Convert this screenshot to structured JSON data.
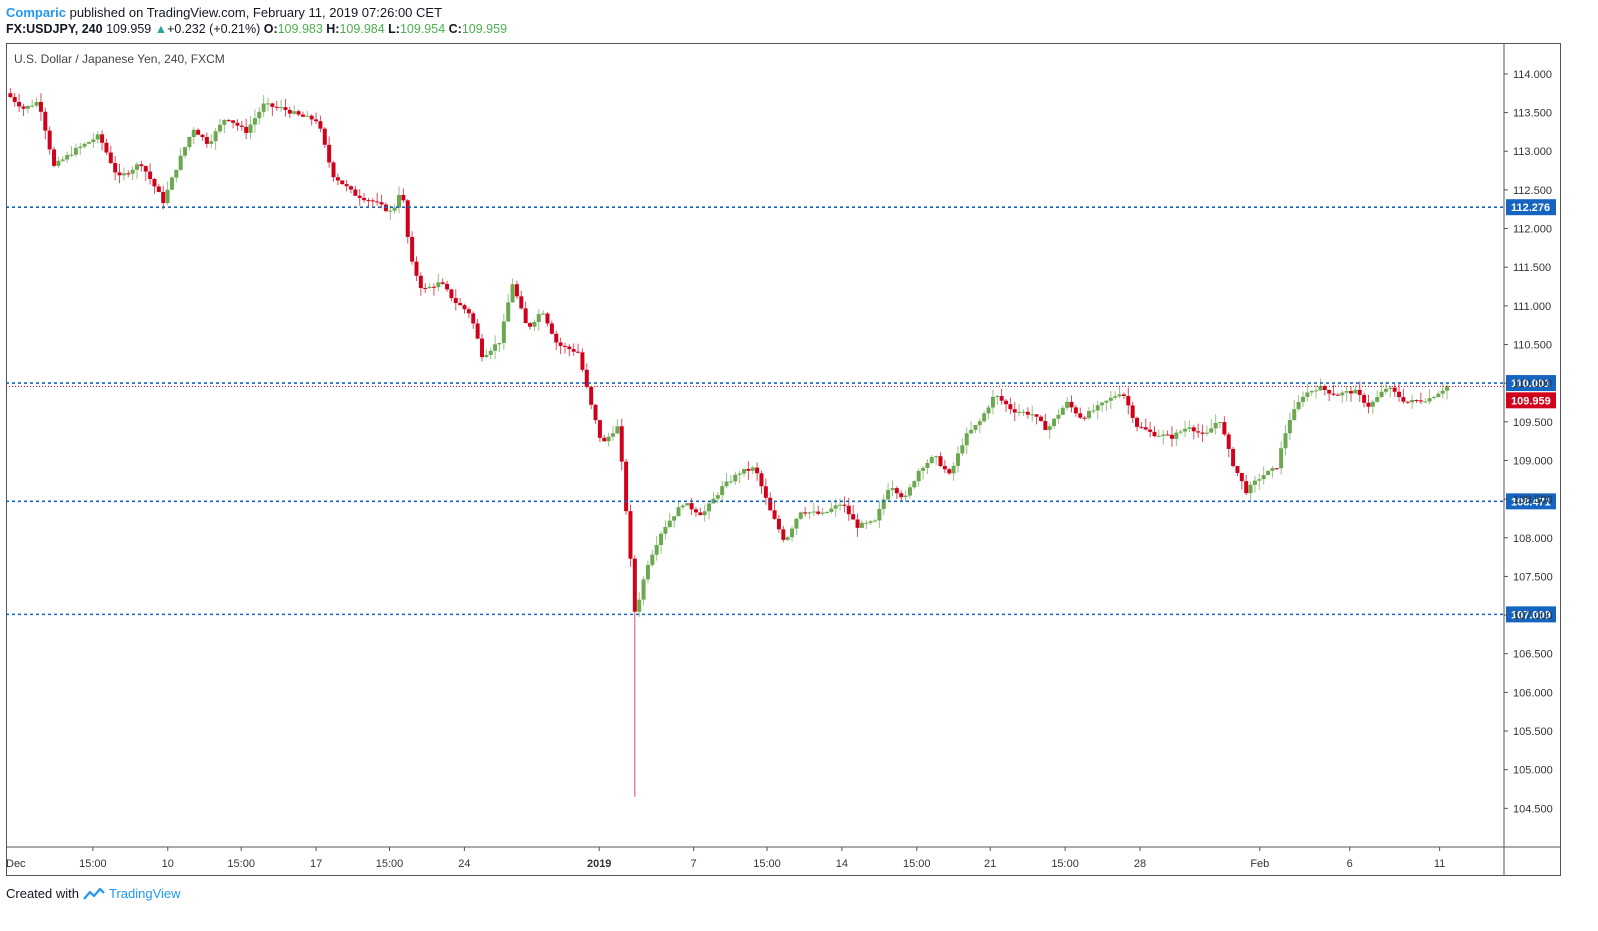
{
  "header": {
    "author": "Comparic",
    "published_text": "published on TradingView.com, February 11, 2019 07:26:00 CET",
    "symbol": "FX:USDJPY, 240",
    "last": "109.959",
    "change_arrow": "▲",
    "change": "+0.232 (+0.21%)",
    "o_label": "O:",
    "o_value": "109.983",
    "h_label": "H:",
    "h_value": "109.984",
    "l_label": "L:",
    "l_value": "109.954",
    "c_label": "C:",
    "c_value": "109.959"
  },
  "chart_title": "U.S. Dollar / Japanese Yen, 240, FXCM",
  "footer": {
    "created_with": "Created with",
    "brand": "TradingView"
  },
  "colors": {
    "up": "#6ba84f",
    "down": "#d0021b",
    "hline": "#1565c0",
    "price_label": "#d0021b",
    "level_label": "#1565c0"
  },
  "chart_data": {
    "type": "candlestick",
    "title": "U.S. Dollar / Japanese Yen, 240, FXCM",
    "ylim": [
      104.0,
      114.4
    ],
    "y_ticks": [
      "114.000",
      "113.500",
      "113.000",
      "112.500",
      "112.000",
      "111.500",
      "111.000",
      "110.500",
      "110.000",
      "109.500",
      "109.000",
      "108.500",
      "108.000",
      "107.500",
      "107.000",
      "106.500",
      "106.000",
      "105.500",
      "105.000",
      "104.500"
    ],
    "x_ticks": [
      {
        "label": "Dec",
        "t": 0.0
      },
      {
        "label": "15:00",
        "t": 0.058
      },
      {
        "label": "10",
        "t": 0.108
      },
      {
        "label": "15:00",
        "t": 0.157
      },
      {
        "label": "17",
        "t": 0.207
      },
      {
        "label": "15:00",
        "t": 0.256
      },
      {
        "label": "24",
        "t": 0.306
      },
      {
        "label": "2019",
        "t": 0.396
      },
      {
        "label": "7",
        "t": 0.459
      },
      {
        "label": "15:00",
        "t": 0.508
      },
      {
        "label": "14",
        "t": 0.558
      },
      {
        "label": "15:00",
        "t": 0.608
      },
      {
        "label": "21",
        "t": 0.657
      },
      {
        "label": "15:00",
        "t": 0.707
      },
      {
        "label": "28",
        "t": 0.757
      },
      {
        "label": "Feb",
        "t": 0.837
      },
      {
        "label": "6",
        "t": 0.897
      },
      {
        "label": "11",
        "t": 0.957
      }
    ],
    "horizontal_levels": [
      {
        "label": "112.276",
        "value": 112.276,
        "color": "#1565c0"
      },
      {
        "label": "110.001",
        "value": 110.001,
        "color": "#1565c0"
      },
      {
        "label": "108.471",
        "value": 108.471,
        "color": "#1565c0"
      },
      {
        "label": "107.009",
        "value": 107.009,
        "color": "#1565c0"
      }
    ],
    "last_price": {
      "label": "109.959",
      "value": 109.959,
      "color": "#d0021b"
    },
    "path": [
      {
        "t": 0.0,
        "p": 113.75
      },
      {
        "t": 0.012,
        "p": 113.55
      },
      {
        "t": 0.022,
        "p": 113.65
      },
      {
        "t": 0.032,
        "p": 112.8
      },
      {
        "t": 0.045,
        "p": 113.0
      },
      {
        "t": 0.062,
        "p": 113.2
      },
      {
        "t": 0.075,
        "p": 112.65
      },
      {
        "t": 0.09,
        "p": 112.85
      },
      {
        "t": 0.105,
        "p": 112.35
      },
      {
        "t": 0.115,
        "p": 112.85
      },
      {
        "t": 0.125,
        "p": 113.3
      },
      {
        "t": 0.135,
        "p": 113.1
      },
      {
        "t": 0.147,
        "p": 113.45
      },
      {
        "t": 0.16,
        "p": 113.25
      },
      {
        "t": 0.172,
        "p": 113.6
      },
      {
        "t": 0.185,
        "p": 113.55
      },
      {
        "t": 0.197,
        "p": 113.45
      },
      {
        "t": 0.208,
        "p": 113.4
      },
      {
        "t": 0.218,
        "p": 112.7
      },
      {
        "t": 0.232,
        "p": 112.45
      },
      {
        "t": 0.245,
        "p": 112.35
      },
      {
        "t": 0.258,
        "p": 112.2
      },
      {
        "t": 0.264,
        "p": 112.55
      },
      {
        "t": 0.27,
        "p": 111.6
      },
      {
        "t": 0.278,
        "p": 111.2
      },
      {
        "t": 0.29,
        "p": 111.3
      },
      {
        "t": 0.3,
        "p": 111.05
      },
      {
        "t": 0.31,
        "p": 110.9
      },
      {
        "t": 0.318,
        "p": 110.35
      },
      {
        "t": 0.33,
        "p": 110.55
      },
      {
        "t": 0.338,
        "p": 111.3
      },
      {
        "t": 0.348,
        "p": 110.7
      },
      {
        "t": 0.358,
        "p": 110.95
      },
      {
        "t": 0.368,
        "p": 110.5
      },
      {
        "t": 0.382,
        "p": 110.4
      },
      {
        "t": 0.39,
        "p": 109.75
      },
      {
        "t": 0.398,
        "p": 109.2
      },
      {
        "t": 0.408,
        "p": 109.45
      },
      {
        "t": 0.412,
        "p": 108.8
      },
      {
        "t": 0.42,
        "p": 107.0
      },
      {
        "t": 0.428,
        "p": 107.65
      },
      {
        "t": 0.438,
        "p": 108.1
      },
      {
        "t": 0.452,
        "p": 108.45
      },
      {
        "t": 0.465,
        "p": 108.3
      },
      {
        "t": 0.478,
        "p": 108.65
      },
      {
        "t": 0.49,
        "p": 108.85
      },
      {
        "t": 0.5,
        "p": 108.9
      },
      {
        "t": 0.51,
        "p": 108.35
      },
      {
        "t": 0.52,
        "p": 107.95
      },
      {
        "t": 0.53,
        "p": 108.35
      },
      {
        "t": 0.545,
        "p": 108.3
      },
      {
        "t": 0.558,
        "p": 108.45
      },
      {
        "t": 0.568,
        "p": 108.15
      },
      {
        "t": 0.58,
        "p": 108.2
      },
      {
        "t": 0.59,
        "p": 108.7
      },
      {
        "t": 0.6,
        "p": 108.5
      },
      {
        "t": 0.61,
        "p": 108.9
      },
      {
        "t": 0.62,
        "p": 109.05
      },
      {
        "t": 0.63,
        "p": 108.8
      },
      {
        "t": 0.64,
        "p": 109.3
      },
      {
        "t": 0.65,
        "p": 109.5
      },
      {
        "t": 0.66,
        "p": 109.85
      },
      {
        "t": 0.672,
        "p": 109.65
      },
      {
        "t": 0.685,
        "p": 109.6
      },
      {
        "t": 0.695,
        "p": 109.4
      },
      {
        "t": 0.708,
        "p": 109.75
      },
      {
        "t": 0.718,
        "p": 109.55
      },
      {
        "t": 0.73,
        "p": 109.7
      },
      {
        "t": 0.745,
        "p": 109.9
      },
      {
        "t": 0.755,
        "p": 109.45
      },
      {
        "t": 0.765,
        "p": 109.35
      },
      {
        "t": 0.778,
        "p": 109.3
      },
      {
        "t": 0.79,
        "p": 109.45
      },
      {
        "t": 0.8,
        "p": 109.3
      },
      {
        "t": 0.81,
        "p": 109.55
      },
      {
        "t": 0.818,
        "p": 109.0
      },
      {
        "t": 0.828,
        "p": 108.6
      },
      {
        "t": 0.838,
        "p": 108.8
      },
      {
        "t": 0.848,
        "p": 108.9
      },
      {
        "t": 0.856,
        "p": 109.5
      },
      {
        "t": 0.866,
        "p": 109.85
      },
      {
        "t": 0.876,
        "p": 109.95
      },
      {
        "t": 0.888,
        "p": 109.85
      },
      {
        "t": 0.9,
        "p": 109.9
      },
      {
        "t": 0.91,
        "p": 109.7
      },
      {
        "t": 0.922,
        "p": 109.95
      },
      {
        "t": 0.935,
        "p": 109.75
      },
      {
        "t": 0.95,
        "p": 109.8
      },
      {
        "t": 0.962,
        "p": 109.96
      }
    ]
  }
}
